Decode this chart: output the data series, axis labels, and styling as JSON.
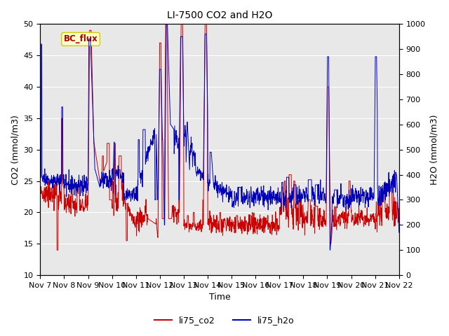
{
  "title": "LI-7500 CO2 and H2O",
  "xlabel": "Time",
  "ylabel_left": "CO2 (mmol/m3)",
  "ylabel_right": "H2O (mmol/m3)",
  "ylim_left": [
    10,
    50
  ],
  "ylim_right": [
    0,
    1000
  ],
  "yticks_left": [
    10,
    15,
    20,
    25,
    30,
    35,
    40,
    45,
    50
  ],
  "yticks_right": [
    0,
    100,
    200,
    300,
    400,
    500,
    600,
    700,
    800,
    900,
    1000
  ],
  "xtick_labels": [
    "Nov 7",
    "Nov 8",
    "Nov 9",
    "Nov 10",
    "Nov 11",
    "Nov 12",
    "Nov 13",
    "Nov 14",
    "Nov 15",
    "Nov 16",
    "Nov 17",
    "Nov 18",
    "Nov 19",
    "Nov 20",
    "Nov 21",
    "Nov 22"
  ],
  "legend_labels": [
    "li75_co2",
    "li75_h2o"
  ],
  "legend_colors": [
    "#cc0000",
    "#0000bb"
  ],
  "annotation_text": "BC_flux",
  "annotation_color": "#aa0000",
  "annotation_bg": "#ffffcc",
  "annotation_edge": "#cccc00",
  "line_color_co2": "#cc0000",
  "line_color_h2o": "#0000bb",
  "background_color": "#e8e8e8",
  "grid_color": "#ffffff",
  "title_fontsize": 10,
  "axis_label_fontsize": 9,
  "tick_fontsize": 8,
  "linewidth": 0.7
}
